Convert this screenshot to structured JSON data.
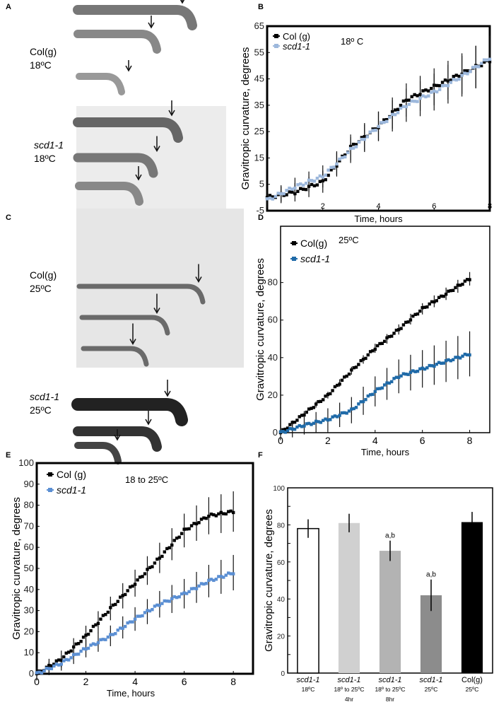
{
  "panels": {
    "A": "A",
    "B": "B",
    "C": "C",
    "D": "D",
    "E": "E",
    "F": "F"
  },
  "photo_labels": {
    "a_col": {
      "line1": "Col(g)",
      "line2": "18ºC"
    },
    "a_scd": {
      "line1": "scd1-1",
      "line2": "18ºC"
    },
    "c_col": {
      "line1": "Col(g)",
      "line2": "25ºC"
    },
    "c_scd": {
      "line1": "scd1-1",
      "line2": "25ºC"
    }
  },
  "colors": {
    "col": "#000000",
    "scd_B": "#9db8dc",
    "scd_D": "#1f6aa8",
    "scd_E": "#5b8fd3"
  },
  "chart_data": [
    {
      "id": "B",
      "type": "line",
      "annotation": "18º C",
      "xlabel": "Time, hours",
      "ylabel": "Gravitropic curvature, degrees",
      "xlim": [
        0,
        8
      ],
      "ylim": [
        -5,
        65
      ],
      "xticks": [
        2,
        4,
        6,
        8
      ],
      "yticks": [
        -5,
        5,
        15,
        25,
        35,
        45,
        55,
        65
      ],
      "x": [
        0,
        1,
        2,
        3,
        4,
        5,
        6,
        7,
        8
      ],
      "series": [
        {
          "name": "Col (g)",
          "values": [
            0,
            2,
            6,
            19,
            27,
            37,
            42,
            47,
            52
          ],
          "error": 7
        },
        {
          "name": "scd1-1",
          "values": [
            -1,
            4,
            8,
            18,
            27,
            35,
            40,
            46,
            53
          ],
          "error": 7
        }
      ]
    },
    {
      "id": "D",
      "type": "line",
      "annotation": "25ºC",
      "xlabel": "Time, hours",
      "ylabel": "Gravitropic curvature, degrees",
      "xlim": [
        0,
        8.85
      ],
      "ylim": [
        0,
        110
      ],
      "xticks": [
        0,
        2,
        4,
        6,
        8
      ],
      "yticks": [
        0,
        20,
        40,
        60,
        80
      ],
      "x": [
        0,
        1,
        2,
        3,
        4,
        5,
        6,
        7,
        8
      ],
      "series": [
        {
          "name": "Col(g)",
          "values": [
            0,
            10,
            20,
            33,
            45,
            55,
            66,
            74,
            82
          ],
          "error": 3
        },
        {
          "name": "scd1-1",
          "values": [
            0,
            4,
            7,
            12,
            22,
            30,
            34,
            38,
            42
          ],
          "error": 10
        }
      ]
    },
    {
      "id": "E",
      "type": "line",
      "annotation": "18 to 25ºC",
      "xlabel": "Time, hours",
      "ylabel": "Gravitropic curvature, degrees",
      "xlim": [
        0,
        8.8
      ],
      "ylim": [
        0,
        100
      ],
      "xticks": [
        0,
        2,
        4,
        6,
        8
      ],
      "yticks": [
        0,
        10,
        20,
        30,
        40,
        50,
        60,
        70,
        80,
        90,
        100
      ],
      "x": [
        0,
        1,
        2,
        3,
        4,
        5,
        6,
        7,
        8
      ],
      "series": [
        {
          "name": "Col (g)",
          "values": [
            0,
            7,
            18,
            31,
            43,
            55,
            68,
            75,
            77
          ],
          "error": 8
        },
        {
          "name": "scd1-1",
          "values": [
            0,
            5,
            12,
            18,
            26,
            33,
            38,
            44,
            48
          ],
          "error": 7
        }
      ]
    },
    {
      "id": "F",
      "type": "bar",
      "ylabel": "Gravitropic curvature, degrees",
      "ylim": [
        0,
        100
      ],
      "yticks": [
        0,
        20,
        40,
        60,
        80,
        100
      ],
      "categories": [
        {
          "name": "scd1-1",
          "line2": "18ºC",
          "line3": ""
        },
        {
          "name": "scd1-1",
          "line2": "18º to 25ºC",
          "line3": "4hr"
        },
        {
          "name": "scd1-1",
          "line2": "18º to 25ºC",
          "line3": "8hr"
        },
        {
          "name": "scd1-1",
          "line2": "25ºC",
          "line3": ""
        },
        {
          "name": "Col(g)",
          "line2": "25ºC",
          "line3": ""
        }
      ],
      "values": [
        78,
        81,
        66,
        42,
        81.5
      ],
      "errors": [
        5,
        5,
        5.5,
        8.5,
        5.5
      ],
      "annotations": [
        "",
        "",
        "a,b",
        "a,b",
        ""
      ],
      "bar_colors": [
        "#ffffff",
        "#d0d0d0",
        "#b3b3b3",
        "#8c8c8c",
        "#000000"
      ]
    }
  ]
}
